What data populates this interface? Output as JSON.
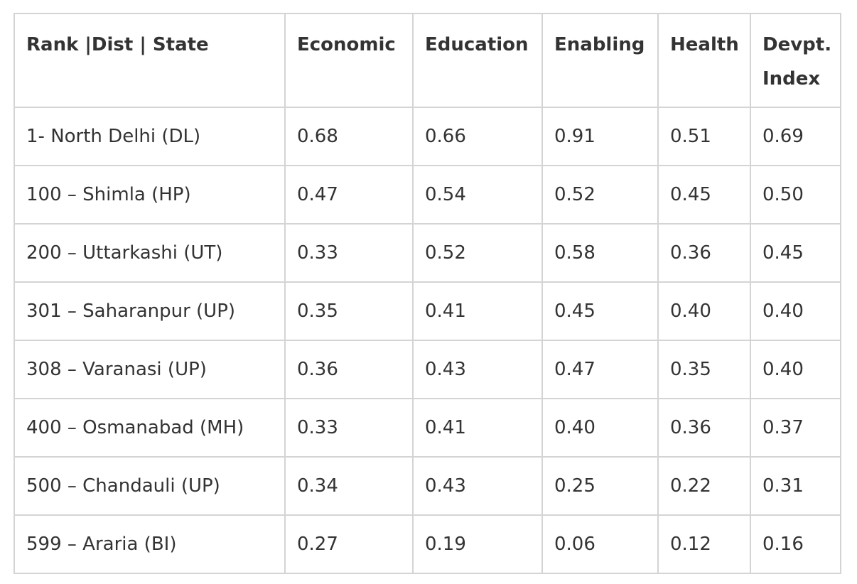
{
  "table": {
    "headers": [
      "Rank |Dist | State",
      "Economic",
      "Education",
      "Enabling",
      "Health",
      "Devpt. Index"
    ],
    "rows": [
      [
        "1- North Delhi (DL)",
        "0.68",
        "0.66",
        "0.91",
        "0.51",
        "0.69"
      ],
      [
        "100 – Shimla (HP)",
        "0.47",
        "0.54",
        "0.52",
        "0.45",
        "0.50"
      ],
      [
        "200 – Uttarkashi (UT)",
        "0.33",
        "0.52",
        "0.58",
        "0.36",
        "0.45"
      ],
      [
        "301 – Saharanpur (UP)",
        "0.35",
        "0.41",
        "0.45",
        "0.40",
        "0.40"
      ],
      [
        "308 – Varanasi (UP)",
        "0.36",
        "0.43",
        "0.47",
        "0.35",
        "0.40"
      ],
      [
        "400 – Osmanabad (MH)",
        "0.33",
        "0.41",
        "0.40",
        "0.36",
        "0.37"
      ],
      [
        "500 – Chandauli (UP)",
        "0.34",
        "0.43",
        "0.25",
        "0.22",
        "0.31"
      ],
      [
        "599 – Araria (BI)",
        "0.27",
        "0.19",
        "0.06",
        "0.12",
        "0.16"
      ]
    ]
  }
}
